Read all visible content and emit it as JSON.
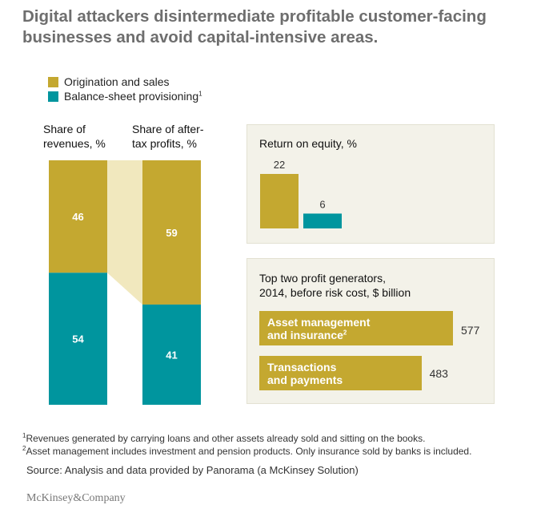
{
  "title": "Digital attackers disintermediate profitable customer-facing businesses and avoid capital-intensive areas.",
  "legend": [
    {
      "label": "Origination and sales",
      "sup": "",
      "color": "#c4a830"
    },
    {
      "label": "Balance-sheet provisioning",
      "sup": "1",
      "color": "#00959e"
    }
  ],
  "footnotes": [
    {
      "sup": "1",
      "text": "Revenues generated by carrying loans and other assets already sold and sitting on the books."
    },
    {
      "sup": "2",
      "text": "Asset management includes investment and pension products. Only insurance sold by banks is included."
    }
  ],
  "source": "Source: Analysis and data provided by Panorama (a McKinsey Solution)",
  "logo": "McKinsey&Company",
  "chart_data": [
    {
      "type": "bar",
      "subtype": "stacked-100",
      "categories": [
        "Share of revenues, %",
        "Share of after-tax profits, %"
      ],
      "series": [
        {
          "name": "Origination and sales",
          "values": [
            46,
            59
          ],
          "color": "#c4a830"
        },
        {
          "name": "Balance-sheet provisioning",
          "values": [
            54,
            41
          ],
          "color": "#00959e"
        }
      ],
      "connector_color": "#f1e8be"
    },
    {
      "type": "bar",
      "title": "Return on equity, %",
      "series": [
        {
          "name": "Origination and sales",
          "value": 22,
          "color": "#c4a830"
        },
        {
          "name": "Balance-sheet provisioning",
          "value": 6,
          "color": "#00959e"
        }
      ],
      "values": [
        22,
        6
      ]
    },
    {
      "type": "bar",
      "orientation": "horizontal",
      "title": "Top two profit generators,",
      "subtitle": "2014, before risk cost, $ billion",
      "bars": [
        {
          "label_lines": [
            "Asset management",
            "and insurance"
          ],
          "sup": "2",
          "value": 577,
          "color": "#c4a830"
        },
        {
          "label_lines": [
            "Transactions",
            "and payments"
          ],
          "sup": "",
          "value": 483,
          "color": "#c4a830"
        }
      ]
    }
  ]
}
